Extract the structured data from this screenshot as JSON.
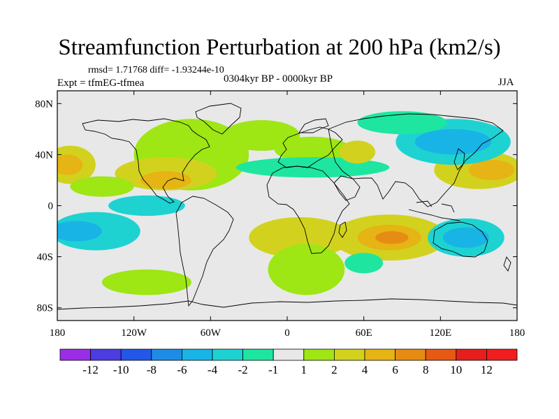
{
  "title": "Streamfunction Perturbation at 200 hPa (km2/s)",
  "stats": "rmsd= 1.71768 diff= -1.93244e-10",
  "period": "0304kyr BP - 0000kyr BP",
  "experiment": "Expt = tfmEG-tfmea",
  "season": "JJA",
  "axes": {
    "lat_labels": [
      {
        "label": "80N",
        "lat": 80
      },
      {
        "label": "40N",
        "lat": 40
      },
      {
        "label": "0",
        "lat": 0
      },
      {
        "label": "40S",
        "lat": -40
      },
      {
        "label": "80S",
        "lat": -80
      }
    ],
    "lon_labels": [
      {
        "label": "180",
        "lon": -180
      },
      {
        "label": "120W",
        "lon": -120
      },
      {
        "label": "60W",
        "lon": -60
      },
      {
        "label": "0",
        "lon": 0
      },
      {
        "label": "60E",
        "lon": 60
      },
      {
        "label": "120E",
        "lon": 120
      },
      {
        "label": "180",
        "lon": 180
      }
    ]
  },
  "colorbar": {
    "labels": [
      "-12",
      "-10",
      "-8",
      "-6",
      "-4",
      "-2",
      "-1",
      "1",
      "2",
      "4",
      "6",
      "8",
      "10",
      "12"
    ],
    "colors": [
      "#9a2ee6",
      "#4b3de0",
      "#2457e8",
      "#1e8ce6",
      "#19b4e6",
      "#1ed2d2",
      "#1ee6a0",
      "#e8e8e8",
      "#9ee614",
      "#d2d21e",
      "#e6b414",
      "#e68c14",
      "#e65a14",
      "#e61e1e",
      "#f01e1e"
    ]
  },
  "chart_data": {
    "type": "contour_map",
    "projection": "cylindrical equidistant",
    "title": "Streamfunction Perturbation at 200 hPa (km2/s)",
    "variable": "streamfunction perturbation",
    "units": "km2/s",
    "level": "200 hPa",
    "season": "JJA",
    "lon_range": [
      -180,
      180
    ],
    "lat_range": [
      -90,
      90
    ],
    "contour_levels": [
      -12,
      -10,
      -8,
      -6,
      -4,
      -2,
      -1,
      1,
      2,
      4,
      6,
      8,
      10,
      12
    ],
    "rmsd": 1.71768,
    "diff": -1.93244e-10,
    "features": [
      {
        "name": "Eurasia_north_high",
        "lon": 20,
        "lat": 44,
        "rx": 30,
        "ry": 10,
        "level_color": "#9ee614"
      },
      {
        "name": "NorthAtlantic_low",
        "lon": -20,
        "lat": 55,
        "rx": 30,
        "ry": 12,
        "level_color": "#9ee614"
      },
      {
        "name": "NorthAmerica_high",
        "lon": -75,
        "lat": 40,
        "rx": 45,
        "ry": 28,
        "level_color": "#9ee614"
      },
      {
        "name": "Caribbean_high_core",
        "lon": -95,
        "lat": 25,
        "rx": 40,
        "ry": 13,
        "level_color": "#d2d21e"
      },
      {
        "name": "Caribbean_peak",
        "lon": -95,
        "lat": 20,
        "rx": 20,
        "ry": 7,
        "level_color": "#e6b414"
      },
      {
        "name": "NPacific_east_high",
        "lon": -170,
        "lat": 32,
        "rx": 20,
        "ry": 15,
        "level_color": "#d2d21e"
      },
      {
        "name": "NPacific_east_peak",
        "lon": -172,
        "lat": 32,
        "rx": 12,
        "ry": 8,
        "level_color": "#e6b414"
      },
      {
        "name": "NPacific_lowlat_high",
        "lon": -145,
        "lat": 15,
        "rx": 25,
        "ry": 8,
        "level_color": "#9ee614"
      },
      {
        "name": "WesternPacific_high",
        "lon": 150,
        "lat": 28,
        "rx": 35,
        "ry": 15,
        "level_color": "#d2d21e"
      },
      {
        "name": "WesternPacific_peak",
        "lon": 160,
        "lat": 28,
        "rx": 18,
        "ry": 8,
        "level_color": "#e6b414"
      },
      {
        "name": "NorthPacific_low",
        "lon": 130,
        "lat": 50,
        "rx": 45,
        "ry": 18,
        "level_color": "#1ed2d2"
      },
      {
        "name": "NorthPacific_low_core",
        "lon": 130,
        "lat": 50,
        "rx": 30,
        "ry": 10,
        "level_color": "#19b4e6"
      },
      {
        "name": "Eurasia_low_band",
        "lon": 20,
        "lat": 30,
        "rx": 60,
        "ry": 8,
        "level_color": "#1ee6a0"
      },
      {
        "name": "CentralAsia_high",
        "lon": 55,
        "lat": 42,
        "rx": 14,
        "ry": 9,
        "level_color": "#d2d21e"
      },
      {
        "name": "Asia_low_strip",
        "lon": 90,
        "lat": 65,
        "rx": 35,
        "ry": 9,
        "level_color": "#1ee6a0"
      },
      {
        "name": "SouthIndianOcean_high",
        "lon": 80,
        "lat": -25,
        "rx": 45,
        "ry": 18,
        "level_color": "#d2d21e"
      },
      {
        "name": "SouthIndianOcean_core",
        "lon": 80,
        "lat": -25,
        "rx": 25,
        "ry": 10,
        "level_color": "#e6b414"
      },
      {
        "name": "SouthIndianOcean_peak",
        "lon": 82,
        "lat": -25,
        "rx": 13,
        "ry": 5,
        "level_color": "#e68c14"
      },
      {
        "name": "SouthernAfrica_high",
        "lon": 10,
        "lat": -25,
        "rx": 40,
        "ry": 16,
        "level_color": "#d2d21e"
      },
      {
        "name": "SouthAtlantic_high",
        "lon": 15,
        "lat": -50,
        "rx": 30,
        "ry": 20,
        "level_color": "#9ee614"
      },
      {
        "name": "EastPacific_eq_low",
        "lon": -110,
        "lat": 0,
        "rx": 30,
        "ry": 8,
        "level_color": "#1ed2d2"
      },
      {
        "name": "SouthPacific_low",
        "lon": -150,
        "lat": -20,
        "rx": 35,
        "ry": 15,
        "level_color": "#1ed2d2"
      },
      {
        "name": "SouthPacific_low_core",
        "lon": -165,
        "lat": -20,
        "rx": 20,
        "ry": 8,
        "level_color": "#19b4e6"
      },
      {
        "name": "SouthPacific_high",
        "lon": -110,
        "lat": -60,
        "rx": 35,
        "ry": 10,
        "level_color": "#9ee614"
      },
      {
        "name": "Australia_low",
        "lon": 140,
        "lat": -25,
        "rx": 30,
        "ry": 15,
        "level_color": "#1ed2d2"
      },
      {
        "name": "Australia_low_core",
        "lon": 140,
        "lat": -25,
        "rx": 18,
        "ry": 8,
        "level_color": "#19b4e6"
      },
      {
        "name": "SouthernOcean_low",
        "lon": 60,
        "lat": -45,
        "rx": 15,
        "ry": 8,
        "level_color": "#1ee6a0"
      }
    ]
  }
}
